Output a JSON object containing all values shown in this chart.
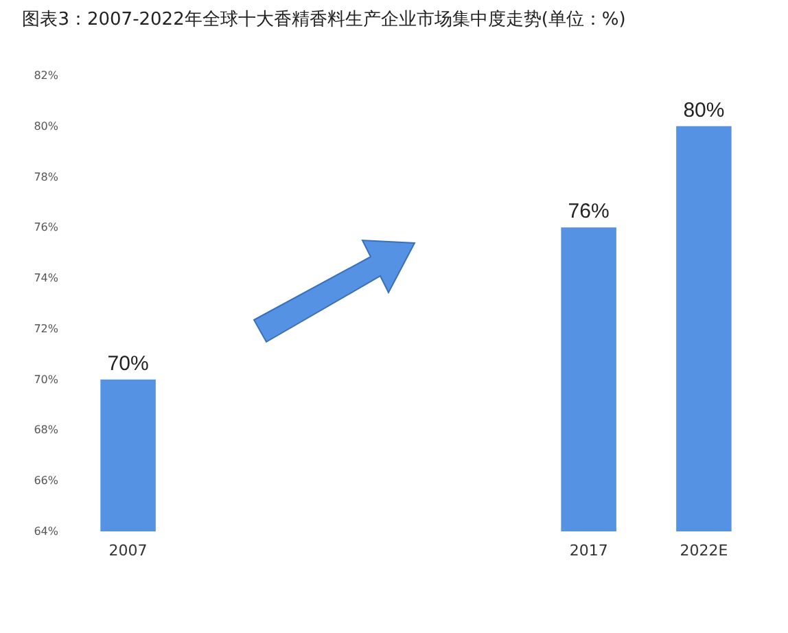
{
  "chart_data": {
    "type": "bar",
    "title": "图表3：2007-2022年全球十大香精香料生产企业市场集中度走势(单位：%)",
    "categories": [
      "2007",
      null,
      null,
      null,
      "2017",
      "2022E"
    ],
    "values": [
      70,
      null,
      null,
      null,
      76,
      80
    ],
    "value_labels": [
      "70%",
      null,
      null,
      null,
      "76%",
      "80%"
    ],
    "color": "#5592e4",
    "ylim": [
      64,
      82
    ],
    "yticks": [
      {
        "value": 64,
        "label": "64%"
      },
      {
        "value": 66,
        "label": "66%"
      },
      {
        "value": 68,
        "label": "68%"
      },
      {
        "value": 70,
        "label": "70%"
      },
      {
        "value": 72,
        "label": "72%"
      },
      {
        "value": 74,
        "label": "74%"
      },
      {
        "value": 76,
        "label": "76%"
      },
      {
        "value": 78,
        "label": "78%"
      },
      {
        "value": 80,
        "label": "80%"
      },
      {
        "value": 82,
        "label": "82%"
      }
    ],
    "grid": false
  }
}
